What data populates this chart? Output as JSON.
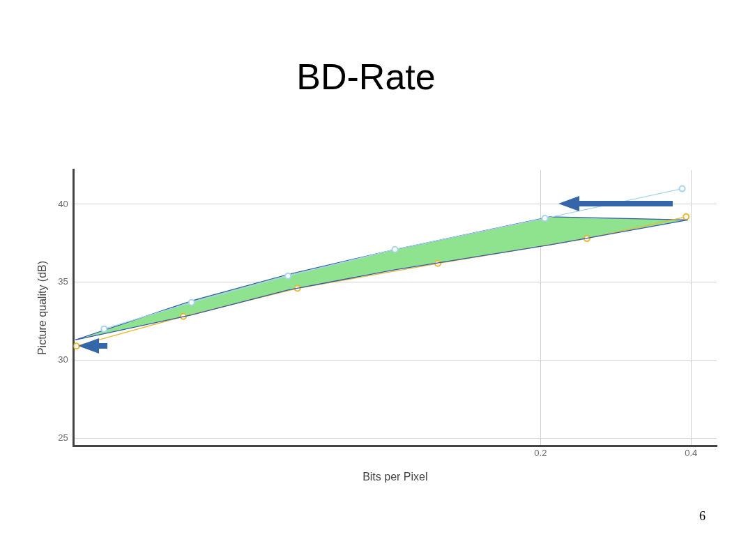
{
  "chart_data": {
    "type": "line",
    "title": "BD-Rate",
    "xlabel": "Bits per Pixel",
    "ylabel": "Picture quality (dB)",
    "log": "x",
    "xlim": [
      0.0233,
      0.45
    ],
    "ylim": [
      24.5,
      42.2
    ],
    "xticks": [
      0.2,
      0.4
    ],
    "yticks": [
      25,
      30,
      35,
      40
    ],
    "grid": true,
    "legend": false,
    "marker": "circle",
    "annotations": [
      "6"
    ],
    "series": [
      {
        "type": "area",
        "marker": "none",
        "color": "#8fe38f",
        "x": [
          0.0235,
          0.0401,
          0.0625,
          0.1023,
          0.209,
          0.394
        ],
        "values": [
          31.3,
          33.8,
          35.5,
          37.1,
          39.2,
          39.0
        ]
      },
      {
        "marker": "none",
        "color": "#3558b0",
        "x": [
          0.0235,
          0.0401,
          0.0625,
          0.1023,
          0.209,
          0.394
        ],
        "values": [
          31.3,
          32.9,
          34.5,
          35.8,
          37.4,
          39.0
        ]
      },
      {
        "color": "#a8d4f0",
        "x": [
          0.0268,
          0.0401,
          0.0625,
          0.1023,
          0.204,
          0.384
        ],
        "values": [
          32.0,
          33.7,
          35.4,
          37.1,
          39.1,
          41.0
        ]
      },
      {
        "color": "#e8b830",
        "x": [
          0.0236,
          0.0386,
          0.0653,
          0.1246,
          0.2476,
          0.391
        ],
        "values": [
          30.9,
          32.8,
          34.6,
          36.2,
          37.8,
          39.2
        ]
      }
    ]
  }
}
